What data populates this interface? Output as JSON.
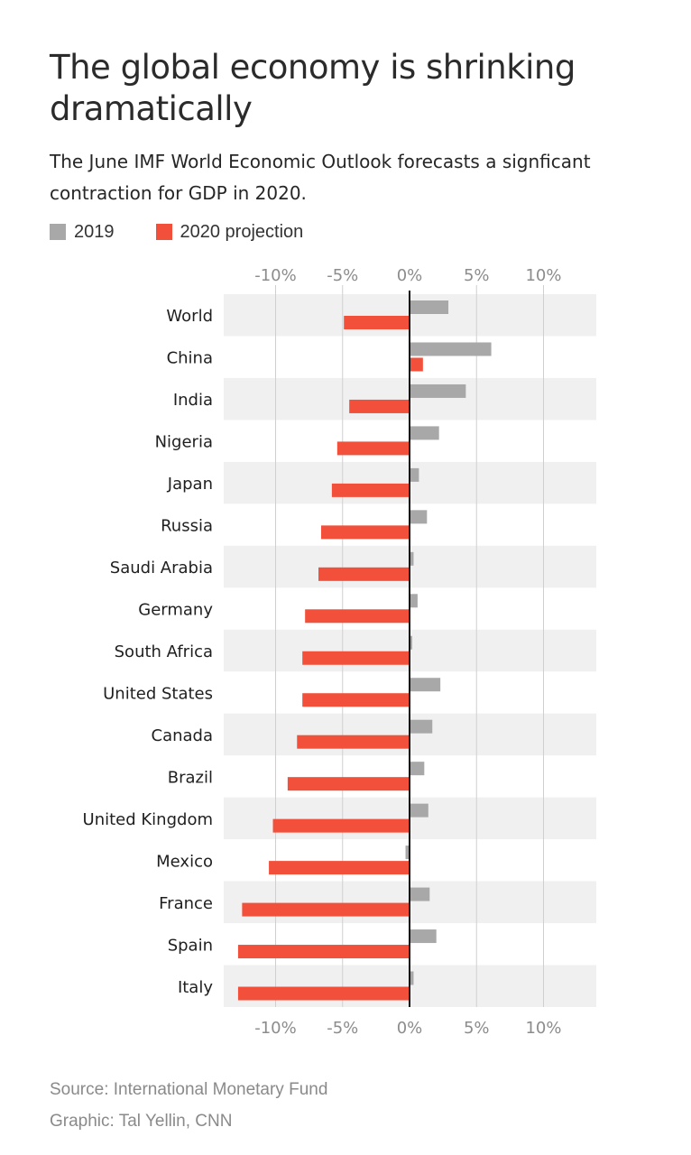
{
  "title": "The global economy is shrinking dramatically",
  "subtitle": "The June IMF World Economic Outlook forecasts a signficant contraction for GDP in 2020.",
  "legend": {
    "series_2019": "2019",
    "series_2020": "2020 projection"
  },
  "colors": {
    "series_2019": "#a8a8a8",
    "series_2020": "#f2503a",
    "band": "#f0f0f0",
    "grid": "#cfcfcf",
    "zero": "#111111",
    "tick": "#8c8c8c"
  },
  "footer": {
    "source": "Source: International Monetary Fund",
    "credit": "Graphic: Tal Yellin, CNN"
  },
  "chart_data": {
    "type": "bar",
    "orientation": "horizontal",
    "title": "The global economy is shrinking dramatically",
    "subtitle": "The June IMF World Economic Outlook forecasts a signficant contraction for GDP in 2020.",
    "xlabel": "",
    "ylabel": "",
    "xlim": [
      -14,
      14
    ],
    "ticks": [
      -10,
      -5,
      0,
      5,
      10
    ],
    "tick_labels": [
      "-10%",
      "-5%",
      "0%",
      "5%",
      "10%"
    ],
    "grid": true,
    "legend_position": "top-left",
    "categories": [
      "World",
      "China",
      "India",
      "Nigeria",
      "Japan",
      "Russia",
      "Saudi Arabia",
      "Germany",
      "South Africa",
      "United States",
      "Canada",
      "Brazil",
      "United Kingdom",
      "Mexico",
      "France",
      "Spain",
      "Italy"
    ],
    "series": [
      {
        "name": "2019",
        "values": [
          2.9,
          6.1,
          4.2,
          2.2,
          0.7,
          1.3,
          0.3,
          0.6,
          0.2,
          2.3,
          1.7,
          1.1,
          1.4,
          -0.3,
          1.5,
          2.0,
          0.3
        ]
      },
      {
        "name": "2020 projection",
        "values": [
          -4.9,
          1.0,
          -4.5,
          -5.4,
          -5.8,
          -6.6,
          -6.8,
          -7.8,
          -8.0,
          -8.0,
          -8.4,
          -9.1,
          -10.2,
          -10.5,
          -12.5,
          -12.8,
          -12.8
        ]
      }
    ]
  }
}
